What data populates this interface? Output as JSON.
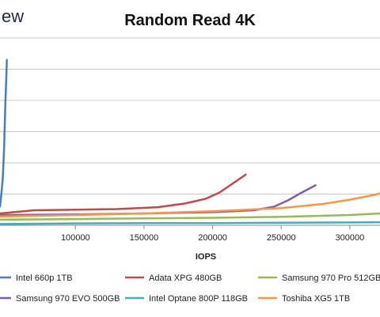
{
  "brand_fragment": "ew",
  "chart_data": {
    "type": "line",
    "title": "Random Read 4K",
    "xlabel": "IOPS",
    "ylabel": "",
    "x_ticks": [
      100000,
      150000,
      200000,
      250000,
      300000
    ],
    "x_tick_labels": [
      "100000",
      "150000",
      "200000",
      "250000",
      "300000"
    ],
    "xlim": [
      45000,
      322000
    ],
    "ylim": [
      0,
      6
    ],
    "grid": "horizontal",
    "legend_position": "bottom",
    "series": [
      {
        "name": "Intel 660p 1TB",
        "color": "#4a7ebb",
        "x": [
          45000,
          46000,
          47000,
          48000,
          49000,
          50000
        ],
        "y": [
          0.6,
          1.0,
          1.5,
          2.5,
          4.0,
          5.3
        ]
      },
      {
        "name": "Adata XPG 480GB",
        "color": "#be4b48",
        "x": [
          45000,
          70000,
          100000,
          130000,
          160000,
          180000,
          195000,
          205000,
          215000,
          224000
        ],
        "y": [
          0.38,
          0.48,
          0.5,
          0.52,
          0.58,
          0.7,
          0.85,
          1.05,
          1.35,
          1.62
        ]
      },
      {
        "name": "Samsung 970 Pro 512GB",
        "color": "#98b954",
        "x": [
          45000,
          100000,
          150000,
          200000,
          250000,
          300000,
          322000
        ],
        "y": [
          0.18,
          0.2,
          0.22,
          0.24,
          0.27,
          0.33,
          0.38
        ]
      },
      {
        "name": "Samsung 970 EVO 500GB",
        "color": "#7d60a0",
        "x": [
          45000,
          100000,
          150000,
          200000,
          230000,
          245000,
          255000,
          265000,
          275000
        ],
        "y": [
          0.33,
          0.35,
          0.38,
          0.42,
          0.48,
          0.6,
          0.8,
          1.05,
          1.28
        ]
      },
      {
        "name": "Intel Optane 800P 118GB",
        "color": "#46aac5",
        "x": [
          45000,
          100000,
          150000,
          200000,
          250000,
          300000,
          322000
        ],
        "y": [
          0.04,
          0.06,
          0.07,
          0.07,
          0.08,
          0.09,
          0.1
        ]
      },
      {
        "name": "Toshiba XG5 1TB",
        "color": "#f79646",
        "x": [
          45000,
          100000,
          150000,
          200000,
          250000,
          280000,
          300000,
          315000,
          322000
        ],
        "y": [
          0.28,
          0.33,
          0.38,
          0.45,
          0.55,
          0.68,
          0.82,
          0.95,
          1.02
        ]
      }
    ]
  }
}
